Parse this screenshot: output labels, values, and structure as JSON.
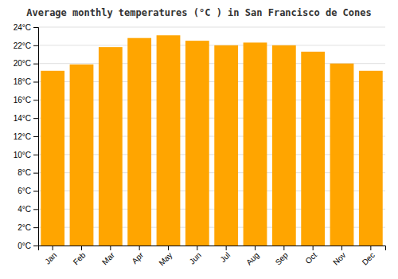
{
  "chart_data": {
    "type": "bar",
    "title": "Average monthly temperatures (°C ) in San Francisco de Cones",
    "categories": [
      "Jan",
      "Feb",
      "Mar",
      "Apr",
      "May",
      "Jun",
      "Jul",
      "Aug",
      "Sep",
      "Oct",
      "Nov",
      "Dec"
    ],
    "values": [
      19.2,
      19.9,
      21.8,
      22.8,
      23.1,
      22.5,
      22.0,
      22.3,
      22.0,
      21.3,
      20.0,
      19.2
    ],
    "color": "#FFA500",
    "ylim": [
      0,
      24
    ],
    "yticks": [
      {
        "value": 0,
        "label": "0°C"
      },
      {
        "value": 2,
        "label": "2°C"
      },
      {
        "value": 4,
        "label": "4°C"
      },
      {
        "value": 6,
        "label": "6°C"
      },
      {
        "value": 8,
        "label": "8°C"
      },
      {
        "value": 10,
        "label": "10°C"
      },
      {
        "value": 12,
        "label": "12°C"
      },
      {
        "value": 14,
        "label": "14°C"
      },
      {
        "value": 16,
        "label": "16°C"
      },
      {
        "value": 18,
        "label": "18°C"
      },
      {
        "value": 20,
        "label": "20°C"
      },
      {
        "value": 22,
        "label": "22°C"
      },
      {
        "value": 24,
        "label": "24°C"
      }
    ],
    "grid": true
  }
}
